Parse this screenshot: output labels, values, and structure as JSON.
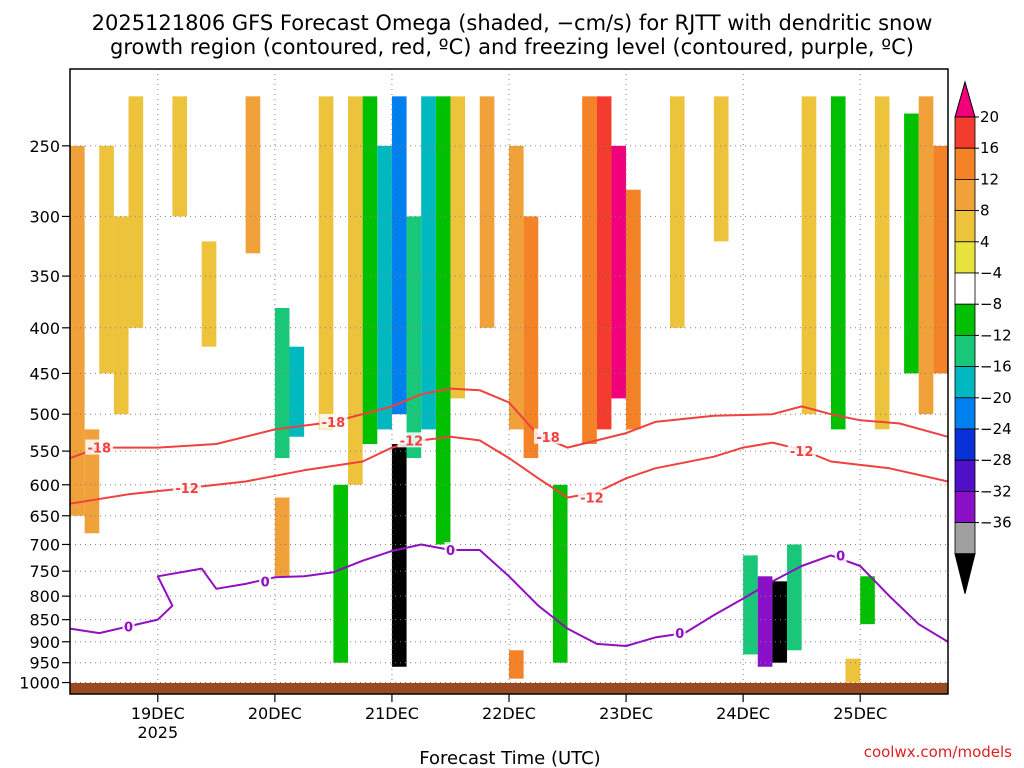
{
  "title_line1": "2025121806 GFS Forecast Omega (shaded, −cm/s) for RJTT with dendritic snow",
  "title_line2": "growth region (contoured, red, ºC) and freezing level (contoured, purple, ºC)",
  "credit": "coolwx.com/models",
  "colors": {
    "snow_contour": "#f04040",
    "freezing_contour": "#9010c0",
    "ground": "#9a4a20"
  },
  "chart_data": {
    "type": "heatmap",
    "xlabel": "Forecast Time (UTC)",
    "ylabel": "",
    "y_scale": "log",
    "y_inverted": true,
    "ylim": [
      1030,
      205
    ],
    "x_unit": "hours since 2025-12-18 06Z",
    "xlim": [
      0,
      180
    ],
    "grid": true,
    "x_ticks": [
      {
        "t": 18,
        "label": "19DEC",
        "sublabel": "2025"
      },
      {
        "t": 42,
        "label": "20DEC",
        "sublabel": ""
      },
      {
        "t": 66,
        "label": "21DEC",
        "sublabel": ""
      },
      {
        "t": 90,
        "label": "22DEC",
        "sublabel": ""
      },
      {
        "t": 114,
        "label": "23DEC",
        "sublabel": ""
      },
      {
        "t": 138,
        "label": "24DEC",
        "sublabel": ""
      },
      {
        "t": 162,
        "label": "25DEC",
        "sublabel": ""
      }
    ],
    "y_ticks": [
      250,
      300,
      350,
      400,
      450,
      500,
      550,
      600,
      650,
      700,
      750,
      800,
      850,
      900,
      950,
      1000
    ],
    "colorbar": {
      "labels": [
        "20",
        "16",
        "12",
        "8",
        "4",
        "−4",
        "−8",
        "−12",
        "−16",
        "−20",
        "−24",
        "−28",
        "−32",
        "−36"
      ],
      "colors": [
        "#f0007a",
        "#f33c2e",
        "#f48226",
        "#f0a13a",
        "#ecc33b",
        "#e8e23c",
        "#ffffff",
        "#00c000",
        "#18c878",
        "#00b8c0",
        "#0080ee",
        "#0a30d8",
        "#5010c8",
        "#8a10c8",
        "#a0a0a0",
        "#000000"
      ]
    },
    "omega_cells": [
      {
        "t": 0,
        "p0": 250,
        "p1": 650,
        "v": 10
      },
      {
        "t": 3,
        "p0": 520,
        "p1": 680,
        "v": 8
      },
      {
        "t": 6,
        "p0": 250,
        "p1": 450,
        "v": 6
      },
      {
        "t": 9,
        "p0": 300,
        "p1": 500,
        "v": 5
      },
      {
        "t": 12,
        "p0": 220,
        "p1": 400,
        "v": 7
      },
      {
        "t": 21,
        "p0": 220,
        "p1": 300,
        "v": 5
      },
      {
        "t": 27,
        "p0": 320,
        "p1": 420,
        "v": 6
      },
      {
        "t": 36,
        "p0": 220,
        "p1": 330,
        "v": 8
      },
      {
        "t": 42,
        "p0": 380,
        "p1": 560,
        "v": -12
      },
      {
        "t": 45,
        "p0": 420,
        "p1": 530,
        "v": -18
      },
      {
        "t": 42,
        "p0": 620,
        "p1": 760,
        "v": 9
      },
      {
        "t": 51,
        "p0": 220,
        "p1": 520,
        "v": 5
      },
      {
        "t": 54,
        "p0": 600,
        "p1": 950,
        "v": -8
      },
      {
        "t": 57,
        "p0": 220,
        "p1": 600,
        "v": 6
      },
      {
        "t": 60,
        "p0": 220,
        "p1": 540,
        "v": -10
      },
      {
        "t": 63,
        "p0": 250,
        "p1": 520,
        "v": -16
      },
      {
        "t": 66,
        "p0": 220,
        "p1": 500,
        "v": -22
      },
      {
        "t": 66,
        "p0": 540,
        "p1": 960,
        "v": -40
      },
      {
        "t": 69,
        "p0": 300,
        "p1": 560,
        "v": -12
      },
      {
        "t": 72,
        "p0": 220,
        "p1": 520,
        "v": -16
      },
      {
        "t": 75,
        "p0": 220,
        "p1": 700,
        "v": -8
      },
      {
        "t": 78,
        "p0": 220,
        "p1": 480,
        "v": 6
      },
      {
        "t": 81,
        "p0": 250,
        "p1": 520,
        "v": -6
      },
      {
        "t": 84,
        "p0": 220,
        "p1": 400,
        "v": 8
      },
      {
        "t": 90,
        "p0": 250,
        "p1": 520,
        "v": 10
      },
      {
        "t": 93,
        "p0": 300,
        "p1": 560,
        "v": 12
      },
      {
        "t": 99,
        "p0": 600,
        "p1": 950,
        "v": -8
      },
      {
        "t": 105,
        "p0": 220,
        "p1": 540,
        "v": 12
      },
      {
        "t": 108,
        "p0": 220,
        "p1": 520,
        "v": 18
      },
      {
        "t": 111,
        "p0": 250,
        "p1": 480,
        "v": 20
      },
      {
        "t": 114,
        "p0": 280,
        "p1": 520,
        "v": 14
      },
      {
        "t": 123,
        "p0": 220,
        "p1": 400,
        "v": 6
      },
      {
        "t": 132,
        "p0": 220,
        "p1": 320,
        "v": 7
      },
      {
        "t": 138,
        "p0": 720,
        "p1": 930,
        "v": -12
      },
      {
        "t": 141,
        "p0": 760,
        "p1": 960,
        "v": -32
      },
      {
        "t": 144,
        "p0": 770,
        "p1": 950,
        "v": -40
      },
      {
        "t": 147,
        "p0": 700,
        "p1": 920,
        "v": -14
      },
      {
        "t": 150,
        "p0": 220,
        "p1": 500,
        "v": 5
      },
      {
        "t": 156,
        "p0": 220,
        "p1": 520,
        "v": -8
      },
      {
        "t": 165,
        "p0": 220,
        "p1": 520,
        "v": 6
      },
      {
        "t": 171,
        "p0": 230,
        "p1": 450,
        "v": -10
      },
      {
        "t": 174,
        "p0": 220,
        "p1": 500,
        "v": 8
      },
      {
        "t": 177,
        "p0": 250,
        "p1": 450,
        "v": 14
      },
      {
        "t": 162,
        "p0": 760,
        "p1": 860,
        "v": -8
      },
      {
        "t": 159,
        "p0": 940,
        "p1": 1000,
        "v": 6
      },
      {
        "t": 90,
        "p0": 920,
        "p1": 990,
        "v": 12
      }
    ],
    "series": [
      {
        "name": "",
        "label": "-18",
        "color": "#f04040",
        "points": [
          [
            0,
            560
          ],
          [
            6,
            545
          ],
          [
            18,
            545
          ],
          [
            30,
            540
          ],
          [
            42,
            520
          ],
          [
            54,
            510
          ],
          [
            66,
            490
          ],
          [
            72,
            475
          ],
          [
            78,
            468
          ],
          [
            84,
            470
          ],
          [
            90,
            485
          ],
          [
            96,
            528
          ],
          [
            102,
            545
          ],
          [
            108,
            535
          ],
          [
            114,
            525
          ],
          [
            120,
            510
          ],
          [
            132,
            502
          ],
          [
            144,
            500
          ],
          [
            150,
            490
          ],
          [
            156,
            500
          ],
          [
            162,
            508
          ],
          [
            170,
            512
          ],
          [
            180,
            530
          ]
        ],
        "labels_at": [
          [
            6,
            545
          ],
          [
            54,
            510
          ],
          [
            98,
            530
          ]
        ]
      },
      {
        "name": "",
        "label": "-12",
        "color": "#f04040",
        "points": [
          [
            0,
            630
          ],
          [
            12,
            615
          ],
          [
            24,
            605
          ],
          [
            36,
            595
          ],
          [
            48,
            578
          ],
          [
            60,
            565
          ],
          [
            66,
            545
          ],
          [
            72,
            535
          ],
          [
            78,
            530
          ],
          [
            84,
            535
          ],
          [
            90,
            560
          ],
          [
            96,
            590
          ],
          [
            102,
            620
          ],
          [
            108,
            612
          ],
          [
            114,
            590
          ],
          [
            120,
            575
          ],
          [
            132,
            558
          ],
          [
            138,
            545
          ],
          [
            144,
            538
          ],
          [
            150,
            548
          ],
          [
            156,
            565
          ],
          [
            168,
            575
          ],
          [
            180,
            595
          ]
        ],
        "labels_at": [
          [
            24,
            605
          ],
          [
            70,
            535
          ],
          [
            107,
            620
          ],
          [
            150,
            550
          ]
        ]
      },
      {
        "name": "",
        "label": "0",
        "color": "#9010c0",
        "points": [
          [
            0,
            870
          ],
          [
            6,
            880
          ],
          [
            12,
            865
          ],
          [
            18,
            850
          ],
          [
            21,
            820
          ],
          [
            18,
            760
          ],
          [
            27,
            745
          ],
          [
            30,
            785
          ],
          [
            36,
            775
          ],
          [
            42,
            762
          ],
          [
            48,
            760
          ],
          [
            54,
            752
          ],
          [
            60,
            730
          ],
          [
            66,
            712
          ],
          [
            72,
            700
          ],
          [
            78,
            710
          ],
          [
            84,
            710
          ],
          [
            90,
            760
          ],
          [
            96,
            820
          ],
          [
            102,
            870
          ],
          [
            108,
            905
          ],
          [
            114,
            910
          ],
          [
            120,
            890
          ],
          [
            126,
            880
          ],
          [
            132,
            840
          ],
          [
            138,
            805
          ],
          [
            144,
            770
          ],
          [
            150,
            740
          ],
          [
            156,
            720
          ],
          [
            162,
            740
          ],
          [
            168,
            800
          ],
          [
            174,
            860
          ],
          [
            180,
            900
          ]
        ],
        "labels_at": [
          [
            12,
            865
          ],
          [
            40,
            770
          ],
          [
            78,
            710
          ],
          [
            125,
            880
          ],
          [
            158,
            720
          ]
        ]
      }
    ]
  }
}
